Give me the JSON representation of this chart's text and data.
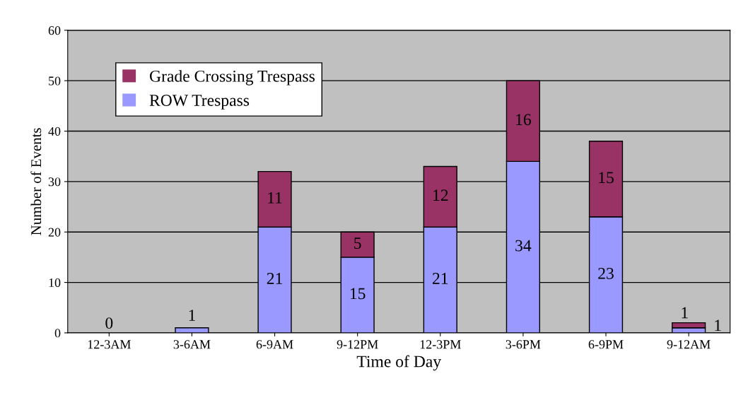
{
  "chart_data": {
    "type": "bar",
    "stacked": true,
    "xlabel": "Time of Day",
    "ylabel": "Number of Events",
    "categories": [
      "12-3AM",
      "3-6AM",
      "6-9AM",
      "9-12PM",
      "12-3PM",
      "3-6PM",
      "6-9PM",
      "9-12AM"
    ],
    "series": [
      {
        "name": "ROW Trespass",
        "color": "#9999ff",
        "values": [
          0,
          1,
          21,
          15,
          21,
          34,
          23,
          1
        ],
        "value_labels": [
          "0",
          "1",
          "21",
          "15",
          "21",
          "34",
          "23",
          "1"
        ]
      },
      {
        "name": "Grade Crossing Trespass",
        "color": "#993366",
        "values": [
          0,
          0,
          11,
          5,
          12,
          16,
          15,
          1
        ],
        "value_labels": [
          null,
          null,
          "11",
          "5",
          "12",
          "16",
          "15",
          "1"
        ]
      }
    ],
    "ylim": [
      0,
      60
    ],
    "yticks": [
      0,
      10,
      20,
      30,
      40,
      50,
      60
    ],
    "grid": "y",
    "legend": "top left"
  }
}
